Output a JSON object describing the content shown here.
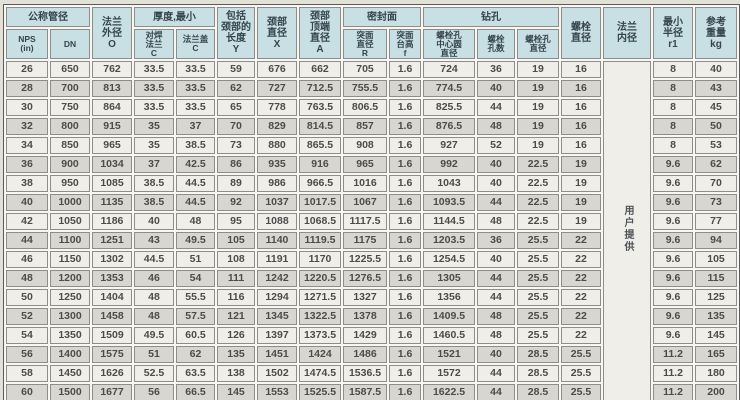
{
  "table": {
    "header": {
      "group_nominal": "公称管径",
      "nps": "NPS\n(in)",
      "dn": "DN",
      "flange_od": "法兰\n外径\nO",
      "group_thickness": "厚度,最小",
      "weld_flange_c": "对焊\n法兰\nC",
      "blind_flange_c": "法兰盖\nC",
      "length_incl_neck_y": "包括\n颈部的\n长度\nY",
      "neck_dia_x": "颈部\n直径\nX",
      "neck_top_dia_a": "颈部\n顶端\n直径\nA",
      "group_seal_face": "密封面",
      "raised_face_dia_r": "突面\n直径\nR",
      "raised_face_height_f": "突面\n台高\nf",
      "group_drilling": "钻孔",
      "bolt_circle_dia": "螺栓孔\n中心圆\n直径",
      "bolt_hole_count": "螺栓\n孔数",
      "bolt_hole_dia": "螺栓孔\n直径",
      "bolt_dia": "螺栓\n直径",
      "flange_id": "法兰\n内径",
      "min_radius_r1": "最小\n半径\nr1",
      "ref_weight_kg": "参考\n重量\nkg"
    },
    "flange_id_note": "用户提供",
    "col_keys": [
      "nps",
      "dn",
      "flange_od",
      "weld_flange_c",
      "blind_flange_c",
      "length_y",
      "neck_x",
      "neck_top_a",
      "face_r",
      "face_f",
      "bolt_circle",
      "bolt_count",
      "bolt_hole_dia",
      "bolt_dia",
      "min_r1",
      "weight_kg"
    ],
    "rows": [
      [
        "26",
        "650",
        "762",
        "33.5",
        "33.5",
        "59",
        "676",
        "662",
        "705",
        "1.6",
        "724",
        "36",
        "19",
        "16",
        "8",
        "40"
      ],
      [
        "28",
        "700",
        "813",
        "33.5",
        "33.5",
        "62",
        "727",
        "712.5",
        "755.5",
        "1.6",
        "774.5",
        "40",
        "19",
        "16",
        "8",
        "43"
      ],
      [
        "30",
        "750",
        "864",
        "33.5",
        "33.5",
        "65",
        "778",
        "763.5",
        "806.5",
        "1.6",
        "825.5",
        "44",
        "19",
        "16",
        "8",
        "45"
      ],
      [
        "32",
        "800",
        "915",
        "35",
        "37",
        "70",
        "829",
        "814.5",
        "857",
        "1.6",
        "876.5",
        "48",
        "19",
        "16",
        "8",
        "50"
      ],
      [
        "34",
        "850",
        "965",
        "35",
        "38.5",
        "73",
        "880",
        "865.5",
        "908",
        "1.6",
        "927",
        "52",
        "19",
        "16",
        "8",
        "53"
      ],
      [
        "36",
        "900",
        "1034",
        "37",
        "42.5",
        "86",
        "935",
        "916",
        "965",
        "1.6",
        "992",
        "40",
        "22.5",
        "19",
        "9.6",
        "62"
      ],
      [
        "38",
        "950",
        "1085",
        "38.5",
        "44.5",
        "89",
        "986",
        "966.5",
        "1016",
        "1.6",
        "1043",
        "40",
        "22.5",
        "19",
        "9.6",
        "70"
      ],
      [
        "40",
        "1000",
        "1135",
        "38.5",
        "44.5",
        "92",
        "1037",
        "1017.5",
        "1067",
        "1.6",
        "1093.5",
        "44",
        "22.5",
        "19",
        "9.6",
        "73"
      ],
      [
        "42",
        "1050",
        "1186",
        "40",
        "48",
        "95",
        "1088",
        "1068.5",
        "1117.5",
        "1.6",
        "1144.5",
        "48",
        "22.5",
        "19",
        "9.6",
        "77"
      ],
      [
        "44",
        "1100",
        "1251",
        "43",
        "49.5",
        "105",
        "1140",
        "1119.5",
        "1175",
        "1.6",
        "1203.5",
        "36",
        "25.5",
        "22",
        "9.6",
        "94"
      ],
      [
        "46",
        "1150",
        "1302",
        "44.5",
        "51",
        "108",
        "1191",
        "1170",
        "1225.5",
        "1.6",
        "1254.5",
        "40",
        "25.5",
        "22",
        "9.6",
        "105"
      ],
      [
        "48",
        "1200",
        "1353",
        "46",
        "54",
        "111",
        "1242",
        "1220.5",
        "1276.5",
        "1.6",
        "1305",
        "44",
        "25.5",
        "22",
        "9.6",
        "115"
      ],
      [
        "50",
        "1250",
        "1404",
        "48",
        "55.5",
        "116",
        "1294",
        "1271.5",
        "1327",
        "1.6",
        "1356",
        "44",
        "25.5",
        "22",
        "9.6",
        "125"
      ],
      [
        "52",
        "1300",
        "1458",
        "48",
        "57.5",
        "121",
        "1345",
        "1322.5",
        "1378",
        "1.6",
        "1409.5",
        "48",
        "25.5",
        "22",
        "9.6",
        "135"
      ],
      [
        "54",
        "1350",
        "1509",
        "49.5",
        "60.5",
        "126",
        "1397",
        "1373.5",
        "1429",
        "1.6",
        "1460.5",
        "48",
        "25.5",
        "22",
        "9.6",
        "145"
      ],
      [
        "56",
        "1400",
        "1575",
        "51",
        "62",
        "135",
        "1451",
        "1424",
        "1486",
        "1.6",
        "1521",
        "40",
        "28.5",
        "25.5",
        "11.2",
        "165"
      ],
      [
        "58",
        "1450",
        "1626",
        "52.5",
        "63.5",
        "138",
        "1502",
        "1474.5",
        "1536.5",
        "1.6",
        "1572",
        "44",
        "28.5",
        "25.5",
        "11.2",
        "180"
      ],
      [
        "60",
        "1500",
        "1677",
        "56",
        "66.5",
        "145",
        "1553",
        "1525.5",
        "1587.5",
        "1.6",
        "1622.5",
        "44",
        "28.5",
        "25.5",
        "11.2",
        "200"
      ]
    ]
  }
}
